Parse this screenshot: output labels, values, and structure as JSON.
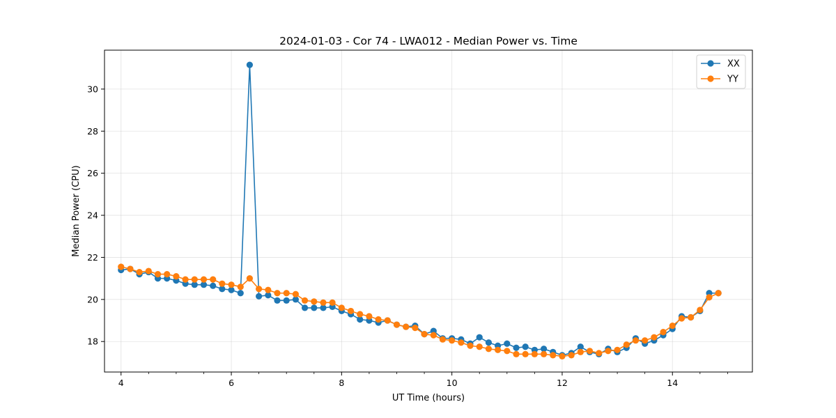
{
  "chart_data": {
    "type": "line",
    "title": "2024-01-03 - Cor 74 - LWA012 - Median Power vs. Time",
    "xlabel": "UT Time (hours)",
    "ylabel": "Median Power (CPU)",
    "xlim": [
      3.7,
      15.45
    ],
    "ylim": [
      16.55,
      31.85
    ],
    "x_ticks": [
      4,
      6,
      8,
      10,
      12,
      14
    ],
    "y_ticks": [
      18,
      20,
      22,
      24,
      26,
      28,
      30
    ],
    "grid": true,
    "legend_position": "top-right",
    "series": [
      {
        "name": "XX",
        "color": "#1f77b4",
        "x": [
          4.0,
          4.167,
          4.333,
          4.5,
          4.667,
          4.833,
          5.0,
          5.167,
          5.333,
          5.5,
          5.667,
          5.833,
          6.0,
          6.167,
          6.333,
          6.5,
          6.667,
          6.833,
          7.0,
          7.167,
          7.333,
          7.5,
          7.667,
          7.833,
          8.0,
          8.167,
          8.333,
          8.5,
          8.667,
          8.833,
          9.0,
          9.167,
          9.333,
          9.5,
          9.667,
          9.833,
          10.0,
          10.167,
          10.333,
          10.5,
          10.667,
          10.833,
          11.0,
          11.167,
          11.333,
          11.5,
          11.667,
          11.833,
          12.0,
          12.167,
          12.333,
          12.5,
          12.667,
          12.833,
          13.0,
          13.167,
          13.333,
          13.5,
          13.667,
          13.833,
          14.0,
          14.167,
          14.333,
          14.5,
          14.667,
          14.833
        ],
        "y": [
          21.4,
          21.45,
          21.2,
          21.3,
          21.0,
          21.0,
          20.9,
          20.75,
          20.7,
          20.7,
          20.65,
          20.5,
          20.45,
          20.3,
          31.15,
          20.15,
          20.2,
          19.95,
          19.95,
          20.0,
          19.6,
          19.6,
          19.6,
          19.65,
          19.45,
          19.3,
          19.05,
          19.0,
          18.9,
          19.0,
          18.8,
          18.7,
          18.75,
          18.35,
          18.5,
          18.15,
          18.15,
          18.1,
          17.9,
          18.2,
          17.95,
          17.8,
          17.9,
          17.7,
          17.75,
          17.6,
          17.65,
          17.5,
          17.35,
          17.45,
          17.75,
          17.5,
          17.4,
          17.65,
          17.5,
          17.7,
          18.15,
          17.9,
          18.05,
          18.3,
          18.6,
          19.2,
          19.15,
          19.45,
          20.3,
          20.3
        ]
      },
      {
        "name": "YY",
        "color": "#ff7f0e",
        "x": [
          4.0,
          4.167,
          4.333,
          4.5,
          4.667,
          4.833,
          5.0,
          5.167,
          5.333,
          5.5,
          5.667,
          5.833,
          6.0,
          6.167,
          6.333,
          6.5,
          6.667,
          6.833,
          7.0,
          7.167,
          7.333,
          7.5,
          7.667,
          7.833,
          8.0,
          8.167,
          8.333,
          8.5,
          8.667,
          8.833,
          9.0,
          9.167,
          9.333,
          9.5,
          9.667,
          9.833,
          10.0,
          10.167,
          10.333,
          10.5,
          10.667,
          10.833,
          11.0,
          11.167,
          11.333,
          11.5,
          11.667,
          11.833,
          12.0,
          12.167,
          12.333,
          12.5,
          12.667,
          12.833,
          13.0,
          13.167,
          13.333,
          13.5,
          13.667,
          13.833,
          14.0,
          14.167,
          14.333,
          14.5,
          14.667,
          14.833
        ],
        "y": [
          21.55,
          21.45,
          21.3,
          21.35,
          21.2,
          21.2,
          21.1,
          20.95,
          20.95,
          20.95,
          20.95,
          20.75,
          20.7,
          20.6,
          21.0,
          20.5,
          20.45,
          20.3,
          20.3,
          20.25,
          19.95,
          19.9,
          19.85,
          19.85,
          19.6,
          19.45,
          19.3,
          19.2,
          19.05,
          19.0,
          18.8,
          18.7,
          18.65,
          18.35,
          18.3,
          18.1,
          18.05,
          17.95,
          17.8,
          17.75,
          17.65,
          17.6,
          17.55,
          17.4,
          17.4,
          17.4,
          17.4,
          17.35,
          17.3,
          17.35,
          17.5,
          17.55,
          17.45,
          17.55,
          17.6,
          17.85,
          18.05,
          18.05,
          18.2,
          18.45,
          18.75,
          19.1,
          19.15,
          19.5,
          20.1,
          20.3
        ]
      }
    ]
  }
}
